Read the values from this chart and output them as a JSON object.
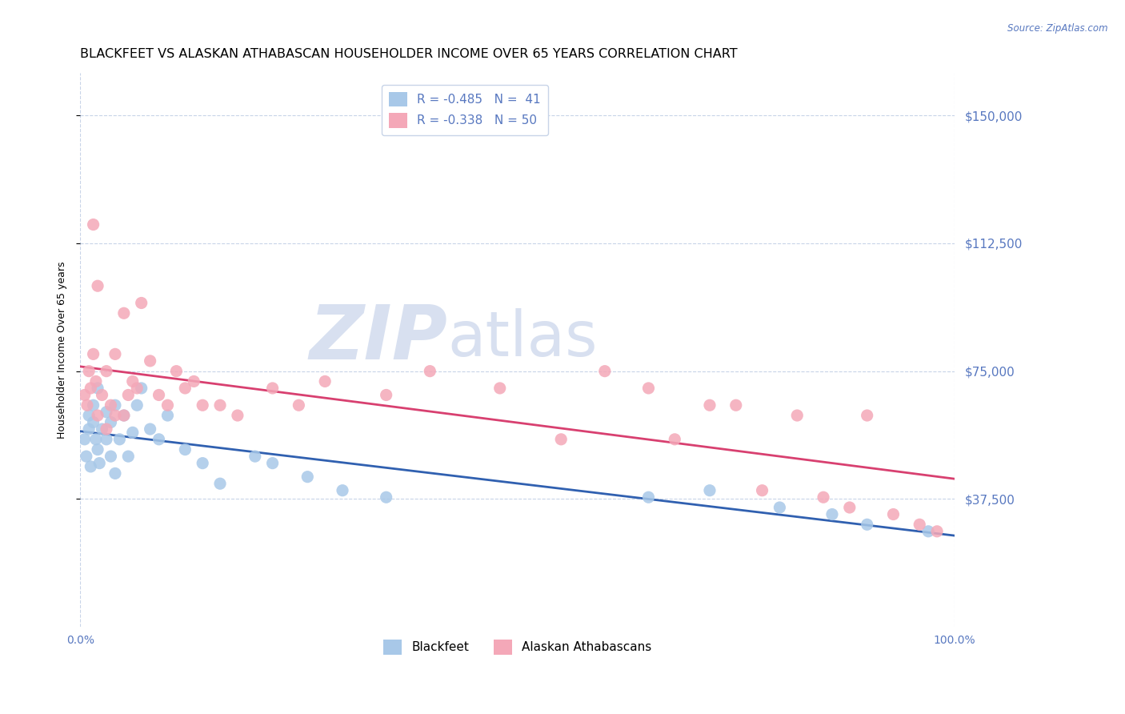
{
  "title": "BLACKFEET VS ALASKAN ATHABASCAN HOUSEHOLDER INCOME OVER 65 YEARS CORRELATION CHART",
  "source": "Source: ZipAtlas.com",
  "ylabel": "Householder Income Over 65 years",
  "ytick_values": [
    37500,
    75000,
    112500,
    150000
  ],
  "ylim": [
    0,
    162500
  ],
  "xlim": [
    0,
    1
  ],
  "blackfeet_x": [
    0.005,
    0.007,
    0.01,
    0.01,
    0.012,
    0.015,
    0.015,
    0.018,
    0.02,
    0.02,
    0.022,
    0.025,
    0.03,
    0.03,
    0.035,
    0.035,
    0.04,
    0.04,
    0.045,
    0.05,
    0.055,
    0.06,
    0.065,
    0.07,
    0.08,
    0.09,
    0.1,
    0.12,
    0.14,
    0.16,
    0.2,
    0.22,
    0.26,
    0.3,
    0.35,
    0.65,
    0.72,
    0.8,
    0.86,
    0.9,
    0.97
  ],
  "blackfeet_y": [
    55000,
    50000,
    62000,
    58000,
    47000,
    65000,
    60000,
    55000,
    70000,
    52000,
    48000,
    58000,
    63000,
    55000,
    60000,
    50000,
    65000,
    45000,
    55000,
    62000,
    50000,
    57000,
    65000,
    70000,
    58000,
    55000,
    62000,
    52000,
    48000,
    42000,
    50000,
    48000,
    44000,
    40000,
    38000,
    38000,
    40000,
    35000,
    33000,
    30000,
    28000
  ],
  "athabascan_x": [
    0.005,
    0.008,
    0.01,
    0.012,
    0.015,
    0.015,
    0.018,
    0.02,
    0.02,
    0.025,
    0.03,
    0.03,
    0.035,
    0.04,
    0.04,
    0.05,
    0.05,
    0.055,
    0.06,
    0.065,
    0.07,
    0.08,
    0.09,
    0.1,
    0.11,
    0.12,
    0.13,
    0.14,
    0.16,
    0.18,
    0.22,
    0.25,
    0.28,
    0.35,
    0.4,
    0.48,
    0.55,
    0.6,
    0.65,
    0.68,
    0.72,
    0.75,
    0.78,
    0.82,
    0.85,
    0.88,
    0.9,
    0.93,
    0.96,
    0.98
  ],
  "athabascan_y": [
    68000,
    65000,
    75000,
    70000,
    118000,
    80000,
    72000,
    100000,
    62000,
    68000,
    75000,
    58000,
    65000,
    80000,
    62000,
    92000,
    62000,
    68000,
    72000,
    70000,
    95000,
    78000,
    68000,
    65000,
    75000,
    70000,
    72000,
    65000,
    65000,
    62000,
    70000,
    65000,
    72000,
    68000,
    75000,
    70000,
    55000,
    75000,
    70000,
    55000,
    65000,
    65000,
    40000,
    62000,
    38000,
    35000,
    62000,
    33000,
    30000,
    28000
  ],
  "blackfeet_color": "#a8c8e8",
  "athabascan_color": "#f4a8b8",
  "blackfeet_line_color": "#3060b0",
  "athabascan_line_color": "#d84070",
  "axis_color": "#5878c0",
  "grid_color": "#c8d4e8",
  "watermark_zip": "ZIP",
  "watermark_atlas": "atlas",
  "watermark_color": "#d8e0f0",
  "background_color": "#ffffff",
  "title_fontsize": 11.5,
  "axis_label_fontsize": 9,
  "tick_fontsize": 10,
  "legend_r1": "R = -0.485",
  "legend_n1": "N =  41",
  "legend_r2": "R = -0.338",
  "legend_n2": "N = 50"
}
